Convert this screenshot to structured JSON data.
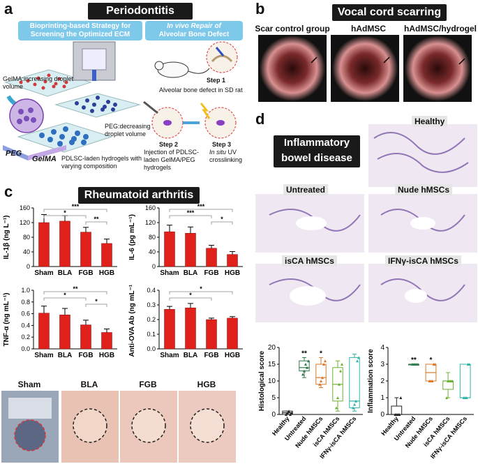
{
  "panels": {
    "a": {
      "letter": "a",
      "title": "Periodontitis",
      "left_pill": "Bioprinting-based Strategy for Screening the Optimized ECM",
      "right_pill_line1": "In vivo Repair of",
      "right_pill_line2": "Alveolar Bone Defect",
      "gelma_label": "GelMA:increasing droplet volume",
      "peg_label": "PEG:decreasing droplet volume",
      "pdlsc_label": "PDLSC-laden hydrogels with varying composition",
      "axis_peg": "PEG",
      "axis_gelma": "GelMA",
      "step1_title": "Step 1",
      "step1_text": "Alveolar bone defect in SD rat",
      "step2_title": "Step 2",
      "step2_text": "Injection of PDLSC-laden GelMA/PEG hydrogels",
      "step3_title": "Step 3",
      "step3_text_italic": "In situ",
      "step3_text": "UV crosslinking"
    },
    "b": {
      "letter": "b",
      "title": "Vocal cord scarring",
      "labels": [
        "Scar control group",
        "hAdMSC",
        "hAdMSC/hydrogel"
      ]
    },
    "c": {
      "letter": "c",
      "title": "Rheumatoid arthritis",
      "photo_labels": [
        "Sham",
        "BLA",
        "FGB",
        "HGB"
      ]
    },
    "d": {
      "letter": "d",
      "title": "Inflammatory bowel disease",
      "histo_labels": [
        "Healthy",
        "Untreated",
        "Nude hMSCs",
        "isCA hMSCs",
        "IFNγ-isCA hMSCs"
      ]
    }
  },
  "colors": {
    "bar_red": "#e0201b",
    "title_bg": "#1a1a1a",
    "pill_blue": "#7ec8ea",
    "box_healthy": "#222222",
    "box_untreated": "#2f7a4c",
    "box_nude": "#d9782a",
    "box_isca": "#6ab22e",
    "box_ifng": "#2fb3a8"
  },
  "chart_data": [
    {
      "type": "bar",
      "categories": [
        "Sham",
        "BLA",
        "FGB",
        "HGB"
      ],
      "values": [
        120,
        124,
        94,
        63
      ],
      "errors": [
        22,
        15,
        13,
        12
      ],
      "ylabel": "IL-1β (ng L⁻¹)",
      "ylim": [
        0,
        160
      ],
      "yticks": [
        0,
        40,
        80,
        120,
        160
      ],
      "sig": [
        "***",
        "*",
        "**"
      ]
    },
    {
      "type": "bar",
      "categories": [
        "Sham",
        "BLA",
        "FGB",
        "HGB"
      ],
      "values": [
        95,
        91,
        50,
        33
      ],
      "errors": [
        18,
        17,
        8,
        8
      ],
      "ylabel": "IL-6 (pg mL⁻¹)",
      "ylim": [
        0,
        160
      ],
      "yticks": [
        0,
        40,
        80,
        120,
        160
      ],
      "sig": [
        "***",
        "***",
        "*"
      ]
    },
    {
      "type": "bar",
      "categories": [
        "Sham",
        "BLA",
        "FGB",
        "HGB"
      ],
      "values": [
        0.61,
        0.58,
        0.41,
        0.28
      ],
      "errors": [
        0.12,
        0.11,
        0.08,
        0.06
      ],
      "ylabel": "TNF-α (ng mL⁻¹)",
      "ylim": [
        0,
        1.0
      ],
      "yticks": [
        0.0,
        0.2,
        0.4,
        0.6,
        0.8,
        1.0
      ],
      "sig": [
        "**",
        "*",
        "*"
      ]
    },
    {
      "type": "bar",
      "categories": [
        "Sham",
        "BLA",
        "FGB",
        "HGB"
      ],
      "values": [
        0.27,
        0.28,
        0.2,
        0.21
      ],
      "errors": [
        0.02,
        0.03,
        0.01,
        0.01
      ],
      "ylabel": "Anti-OVA Ab (ng mL⁻¹)",
      "ylim": [
        0,
        0.4
      ],
      "yticks": [
        0.0,
        0.1,
        0.2,
        0.3,
        0.4
      ],
      "sig": [
        "*",
        "*"
      ]
    },
    {
      "type": "box",
      "categories": [
        "Healthy",
        "Untreated",
        "Nude hMSCs",
        "isCA hMSCs",
        "IFNγ-isCA hMSCs"
      ],
      "boxes": [
        [
          0,
          0,
          0.5,
          1,
          1
        ],
        [
          11,
          13,
          14,
          16,
          17
        ],
        [
          8,
          9,
          11,
          15,
          17
        ],
        [
          1,
          4,
          9,
          14,
          16
        ],
        [
          1,
          2,
          4,
          17,
          18
        ]
      ],
      "points": [
        [
          0,
          0.5,
          1,
          0,
          0.5
        ],
        [
          12,
          13,
          15,
          14,
          16
        ],
        [
          9,
          10,
          11,
          15,
          16
        ],
        [
          2,
          5,
          9,
          13,
          15
        ],
        [
          2,
          3,
          4,
          16,
          17
        ]
      ],
      "ylabel": "Histological score",
      "ylim": [
        0,
        20
      ],
      "yticks": [
        0,
        5,
        10,
        15,
        20
      ],
      "sig": [
        "",
        "**",
        "*",
        "",
        ""
      ]
    },
    {
      "type": "box",
      "categories": [
        "Healthy",
        "Untreated",
        "Nude hMSCs",
        "isCA hMSCs",
        "IFNγ-isCA hMSCs"
      ],
      "boxes": [
        [
          0,
          0,
          0,
          0.5,
          1
        ],
        [
          3,
          3,
          3,
          3,
          3
        ],
        [
          2,
          2,
          2.5,
          3,
          3
        ],
        [
          1,
          1.5,
          2,
          2,
          2.5
        ],
        [
          1,
          1,
          1,
          3,
          3
        ]
      ],
      "points": [
        [
          0,
          0,
          0,
          0,
          1
        ],
        [
          3,
          3,
          3,
          3,
          3
        ],
        [
          2,
          2,
          2,
          3,
          3
        ],
        [
          1,
          2,
          2,
          2,
          2
        ],
        [
          1,
          1,
          1,
          3,
          3
        ]
      ],
      "ylabel": "Inflammation score",
      "ylim": [
        0,
        4
      ],
      "yticks": [
        0,
        1,
        2,
        3,
        4
      ],
      "sig": [
        "",
        "**",
        "*",
        "",
        ""
      ]
    }
  ]
}
